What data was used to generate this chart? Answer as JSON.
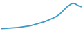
{
  "values": [
    2,
    2.5,
    3,
    3.5,
    4,
    4.5,
    5,
    5.5,
    6,
    7,
    8,
    9,
    10,
    11,
    12,
    14,
    16,
    18,
    20,
    22,
    24,
    26,
    29,
    32,
    35,
    38,
    41,
    45,
    50,
    56,
    63,
    70,
    77,
    82,
    87,
    90,
    88,
    84,
    80,
    78
  ],
  "line_color": "#3d9ac4",
  "background_color": "#ffffff",
  "linewidth": 1.3
}
